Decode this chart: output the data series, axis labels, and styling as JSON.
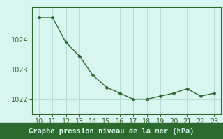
{
  "x": [
    10,
    11,
    12,
    13,
    14,
    15,
    16,
    17,
    18,
    19,
    20,
    21,
    22,
    23
  ],
  "y": [
    1024.75,
    1024.75,
    1023.9,
    1023.45,
    1022.8,
    1022.4,
    1022.2,
    1022.0,
    1022.0,
    1022.1,
    1022.2,
    1022.35,
    1022.1,
    1022.2
  ],
  "line_color": "#2d6a2d",
  "marker_color": "#2d6a2d",
  "bg_color": "#d8f5f0",
  "grid_color": "#b8ddd6",
  "xlabel": "Graphe pression niveau de la mer (hPa)",
  "xlabel_color": "#2d6a2d",
  "tick_color": "#2d6a2d",
  "spine_color": "#2d6a2d",
  "bottom_band_color": "#2d6a2d",
  "ylim": [
    1021.5,
    1025.1
  ],
  "yticks": [
    1022,
    1023,
    1024
  ],
  "xticks": [
    10,
    11,
    12,
    13,
    14,
    15,
    16,
    17,
    18,
    19,
    20,
    21,
    22,
    23
  ],
  "xlim": [
    9.5,
    23.5
  ],
  "tick_fontsize": 7,
  "xlabel_fontsize": 7.5
}
